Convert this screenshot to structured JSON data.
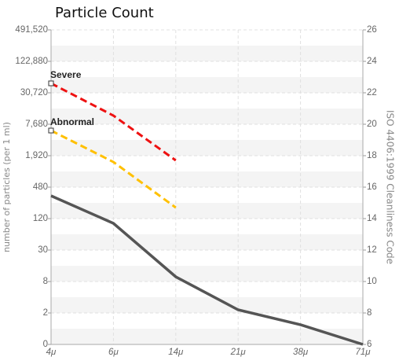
{
  "chart_data": {
    "type": "line",
    "title": "Particle Count",
    "y_label": "number of particles (per 1 ml)",
    "y2_label": "ISO 4406:1999 Cleanliness Code",
    "categories": [
      "4μ",
      "6μ",
      "14μ",
      "21μ",
      "38μ",
      "71μ"
    ],
    "ylim": [
      6,
      26
    ],
    "yticks": [
      6,
      8,
      10,
      12,
      14,
      16,
      18,
      20,
      22,
      24,
      26
    ],
    "count_labels": [
      "0",
      "2",
      "8",
      "30",
      "120",
      "480",
      "1,920",
      "7,680",
      "30,720",
      "122,880",
      "491,520"
    ],
    "grid": true,
    "series": [
      {
        "color": "#555555",
        "values": [
          15.45,
          13.7,
          10.3,
          8.2,
          7.25,
          6
        ]
      },
      {
        "name": "Severe",
        "color": "#ee1111",
        "values": [
          22.6,
          20.55,
          17.7,
          null,
          null,
          null
        ]
      },
      {
        "name": "Abnormal",
        "color": "#ffc000",
        "values": [
          19.6,
          17.6,
          14.7,
          null,
          null,
          null
        ]
      }
    ]
  }
}
